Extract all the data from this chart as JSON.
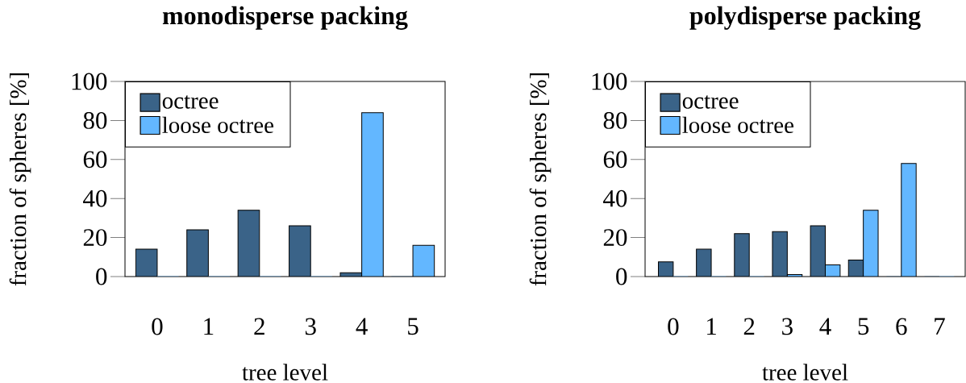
{
  "chart_data": [
    {
      "type": "bar",
      "title": "monodisperse packing",
      "xlabel": "tree level",
      "ylabel": "fraction of spheres [%]",
      "categories": [
        "0",
        "1",
        "2",
        "3",
        "4",
        "5"
      ],
      "series": [
        {
          "name": "octree",
          "color": "#3a6388",
          "values": [
            14,
            24,
            34,
            26,
            2,
            0
          ]
        },
        {
          "name": "loose octree",
          "color": "#63b7ff",
          "values": [
            0,
            0,
            0,
            0,
            84,
            16
          ]
        }
      ],
      "ylim": [
        0,
        100
      ],
      "yticks": [
        0,
        20,
        40,
        60,
        80,
        100
      ],
      "legend": "top left"
    },
    {
      "type": "bar",
      "title": "polydisperse packing",
      "xlabel": "tree level",
      "ylabel": "fraction of spheres [%]",
      "categories": [
        "0",
        "1",
        "2",
        "3",
        "4",
        "5",
        "6",
        "7"
      ],
      "series": [
        {
          "name": "octree",
          "color": "#3a6388",
          "values": [
            7.5,
            14,
            22,
            23,
            26,
            8.5,
            0,
            0
          ]
        },
        {
          "name": "loose octree",
          "color": "#63b7ff",
          "values": [
            0,
            0,
            0,
            1,
            6,
            34,
            58,
            0
          ]
        }
      ],
      "ylim": [
        0,
        100
      ],
      "yticks": [
        0,
        20,
        40,
        60,
        80,
        100
      ],
      "legend": "top left"
    }
  ]
}
